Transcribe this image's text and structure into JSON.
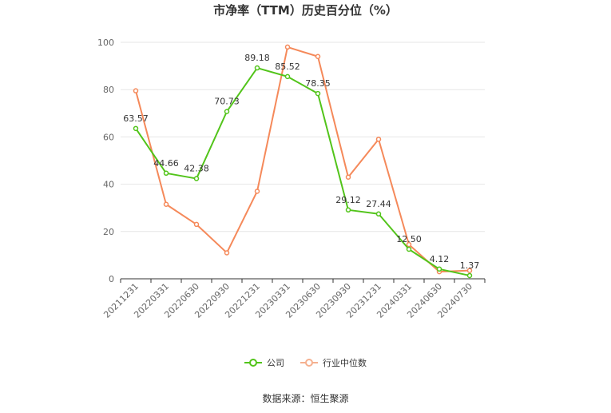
{
  "chart_data": {
    "type": "line",
    "title": "市净率（TTM）历史百分位（%）",
    "categories": [
      "20211231",
      "20220331",
      "20220630",
      "20220930",
      "20221231",
      "20230331",
      "20230630",
      "20230930",
      "20231231",
      "20240331",
      "20240630",
      "20240730"
    ],
    "ylim": [
      0,
      100
    ],
    "yticks": [
      0,
      20,
      40,
      60,
      80,
      100
    ],
    "grid": true,
    "legend_position": "bottom",
    "series": [
      {
        "name": "公司",
        "color": "#52c41a",
        "values": [
          63.57,
          44.66,
          42.38,
          70.73,
          89.18,
          85.52,
          78.35,
          29.12,
          27.44,
          12.5,
          4.12,
          1.37
        ],
        "labels": [
          "63.57",
          "44.66",
          "42.38",
          "70.73",
          "89.18",
          "85.52",
          "78.35",
          "29.12",
          "27.44",
          "12.50",
          "4.12",
          "1.37"
        ]
      },
      {
        "name": "行业中位数",
        "color": "#f5895a",
        "values": [
          79.5,
          31.5,
          23.0,
          11.0,
          37.0,
          98.0,
          94.0,
          43.0,
          59.0,
          14.5,
          3.0,
          3.5
        ]
      }
    ]
  },
  "footer": {
    "source": "数据来源：恒生聚源"
  }
}
